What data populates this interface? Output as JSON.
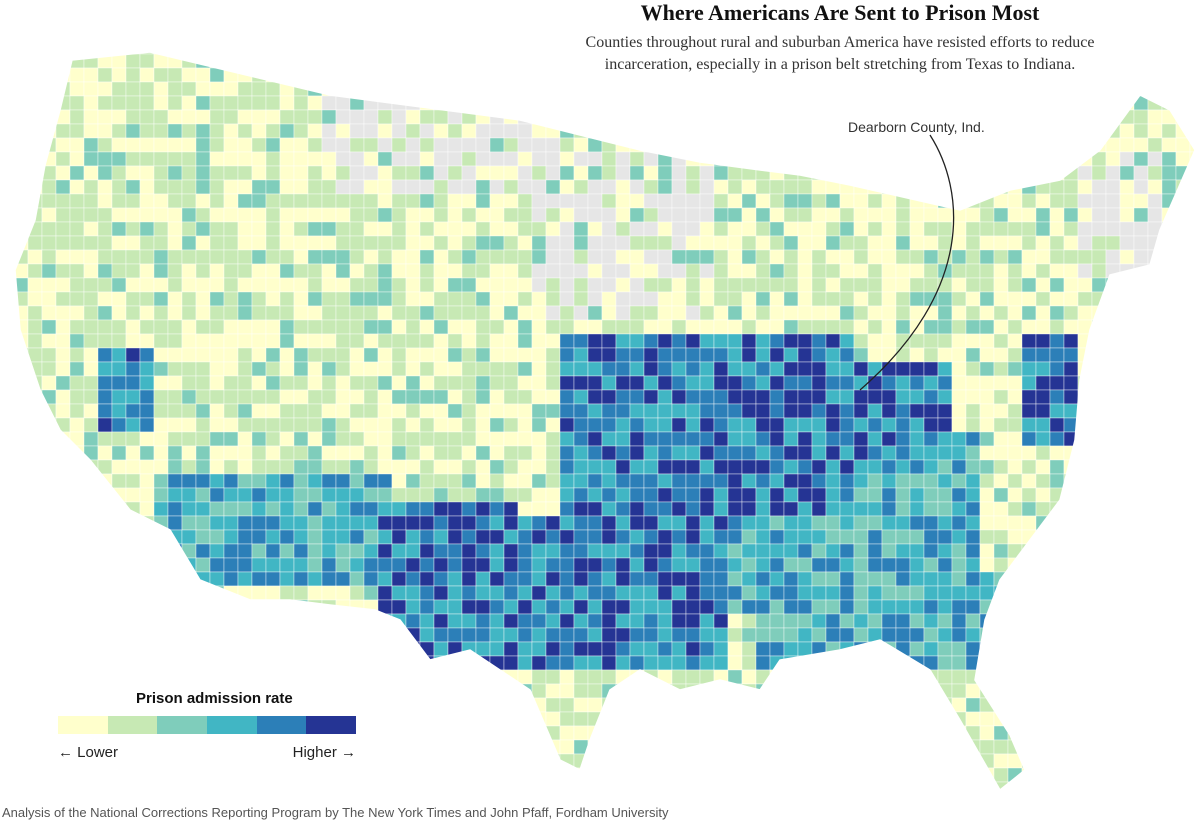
{
  "title": "Where Americans Are Sent to Prison Most",
  "subtitle": "Counties throughout rural and suburban America have resisted efforts to reduce incarceration, especially in a prison belt stretching from Texas to Indiana.",
  "annotation": "Dearborn County, Ind.",
  "legend": {
    "title": "Prison admission rate",
    "lower": "← Lower",
    "higher": "Higher →",
    "colors": [
      "#ffffcc",
      "#c7e9b4",
      "#7fcdbb",
      "#41b6c4",
      "#2c7fb8",
      "#253494"
    ]
  },
  "no_data_color": "#e6e6e6",
  "source": "Analysis of the National Corrections Reporting Program by The New York Times and John Pfaff, Fordham University"
}
